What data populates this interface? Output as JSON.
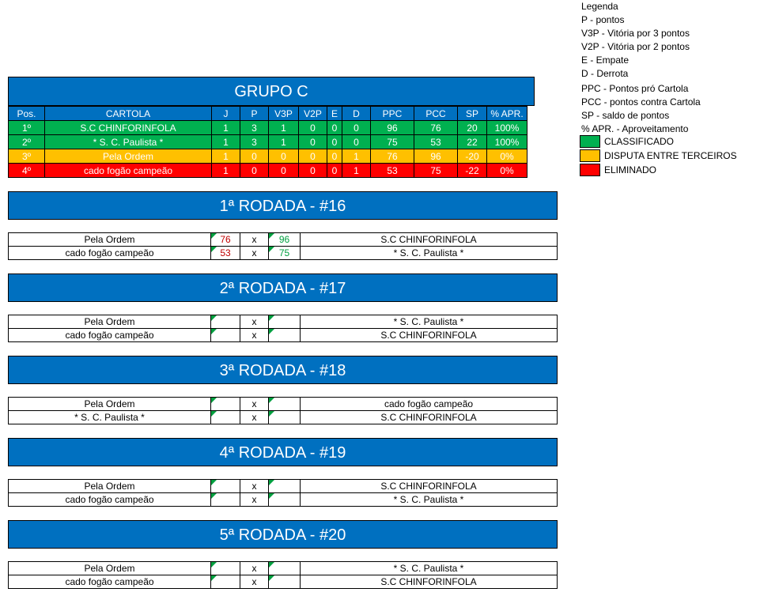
{
  "group": {
    "title": "GRUPO C",
    "headers": [
      "Pos.",
      "CARTOLA",
      "J",
      "P",
      "V3P",
      "V2P",
      "E",
      "D",
      "PPC",
      "PCC",
      "SP",
      "% APR."
    ],
    "rows": [
      {
        "pos": "1º",
        "team": "S.C CHINFORINFOLA",
        "j": "1",
        "p": "3",
        "v3p": "1",
        "v2p": "0",
        "e": "0",
        "d": "0",
        "ppc": "96",
        "pcc": "76",
        "sp": "20",
        "apr": "100%"
      },
      {
        "pos": "2º",
        "team": "* S. C. Paulista *",
        "j": "1",
        "p": "3",
        "v3p": "1",
        "v2p": "0",
        "e": "0",
        "d": "0",
        "ppc": "75",
        "pcc": "53",
        "sp": "22",
        "apr": "100%"
      },
      {
        "pos": "3º",
        "team": "Pela Ordem",
        "j": "1",
        "p": "0",
        "v3p": "0",
        "v2p": "0",
        "e": "0",
        "d": "1",
        "ppc": "76",
        "pcc": "96",
        "sp": "-20",
        "apr": "0%"
      },
      {
        "pos": "4º",
        "team": "cado fogão campeão",
        "j": "1",
        "p": "0",
        "v3p": "0",
        "v2p": "0",
        "e": "0",
        "d": "1",
        "ppc": "53",
        "pcc": "75",
        "sp": "-22",
        "apr": "0%"
      }
    ]
  },
  "legend": {
    "lines": [
      "Legenda",
      "P - pontos",
      "V3P - Vitória por 3 pontos",
      "V2P - Vitória por 2 pontos",
      "E - Empate",
      "D - Derrota",
      "PPC - Pontos pró Cartola",
      "PCC - pontos contra Cartola",
      "SP - saldo de pontos",
      "% APR. - Aproveitamento"
    ],
    "classificado": "CLASSIFICADO",
    "disputa": "DISPUTA ENTRE TERCEIROS",
    "eliminado": "ELIMINADO",
    "colors": {
      "green": "#00b050",
      "yellow": "#ffc000",
      "red": "#ff0000"
    }
  },
  "rounds": [
    {
      "title": "1ª RODADA - #16",
      "matches": [
        {
          "home": "Pela Ordem",
          "hs": "76",
          "vs": "x",
          "as": "96",
          "away": "S.C CHINFORINFOLA"
        },
        {
          "home": "cado fogão campeão",
          "hs": "53",
          "vs": "x",
          "as": "75",
          "away": "* S. C. Paulista *"
        }
      ]
    },
    {
      "title": "2ª RODADA - #17",
      "matches": [
        {
          "home": "Pela Ordem",
          "hs": "",
          "vs": "x",
          "as": "",
          "away": "* S. C. Paulista *"
        },
        {
          "home": "cado fogão campeão",
          "hs": "",
          "vs": "x",
          "as": "",
          "away": "S.C CHINFORINFOLA"
        }
      ]
    },
    {
      "title": "3ª RODADA - #18",
      "matches": [
        {
          "home": "Pela Ordem",
          "hs": "",
          "vs": "x",
          "as": "",
          "away": "cado fogão campeão"
        },
        {
          "home": "* S. C. Paulista *",
          "hs": "",
          "vs": "x",
          "as": "",
          "away": "S.C CHINFORINFOLA"
        }
      ]
    },
    {
      "title": "4ª RODADA - #19",
      "matches": [
        {
          "home": "Pela Ordem",
          "hs": "",
          "vs": "x",
          "as": "",
          "away": "S.C CHINFORINFOLA"
        },
        {
          "home": "cado fogão campeão",
          "hs": "",
          "vs": "x",
          "as": "",
          "away": "* S. C. Paulista *"
        }
      ]
    },
    {
      "title": "5ª RODADA - #20",
      "matches": [
        {
          "home": "Pela Ordem",
          "hs": "",
          "vs": "x",
          "as": "",
          "away": "* S. C. Paulista *"
        },
        {
          "home": "cado fogão campeão",
          "hs": "",
          "vs": "x",
          "as": "",
          "away": "S.C CHINFORINFOLA"
        }
      ]
    }
  ]
}
